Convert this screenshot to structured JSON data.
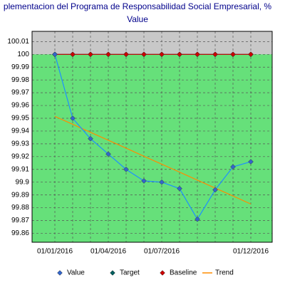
{
  "chart_data": {
    "type": "line",
    "title": "plementacion del Programa de Responsabilidad Social Empresarial, %",
    "subtitle": "Value",
    "categories": [
      "01/01/2016",
      null,
      null,
      "01/04/2016",
      null,
      null,
      "01/07/2016",
      null,
      null,
      null,
      null,
      "01/12/2016"
    ],
    "series": [
      {
        "name": "Value",
        "color": "#1e90ff",
        "marker": "#3366cc",
        "values": [
          100,
          99.95,
          99.934,
          99.922,
          99.91,
          99.901,
          99.9,
          99.895,
          99.871,
          99.894,
          99.912,
          99.916
        ]
      },
      {
        "name": "Target",
        "color": "#006060",
        "marker": "#006060",
        "values": [
          100,
          100,
          100,
          100,
          100,
          100,
          100,
          100,
          100,
          100,
          100,
          100
        ]
      },
      {
        "name": "Baseline",
        "color": "#cc0000",
        "marker": "#cc0000",
        "values": [
          100,
          100,
          100,
          100,
          100,
          100,
          100,
          100,
          100,
          100,
          100,
          100
        ]
      },
      {
        "name": "Trend",
        "color": "#ff8c00",
        "values": [
          99.9515,
          99.9453,
          99.939,
          99.9328,
          99.9266,
          99.9203,
          99.9141,
          99.9079,
          99.9016,
          99.8954,
          99.8892,
          99.8829
        ]
      }
    ],
    "ylim": [
      99.853,
      100.018
    ],
    "yticks": [
      99.86,
      99.87,
      99.88,
      99.89,
      99.9,
      99.91,
      99.92,
      99.93,
      99.94,
      99.95,
      99.96,
      99.97,
      99.98,
      99.99,
      100,
      100.01
    ],
    "grid": true,
    "legend": "bottom"
  }
}
